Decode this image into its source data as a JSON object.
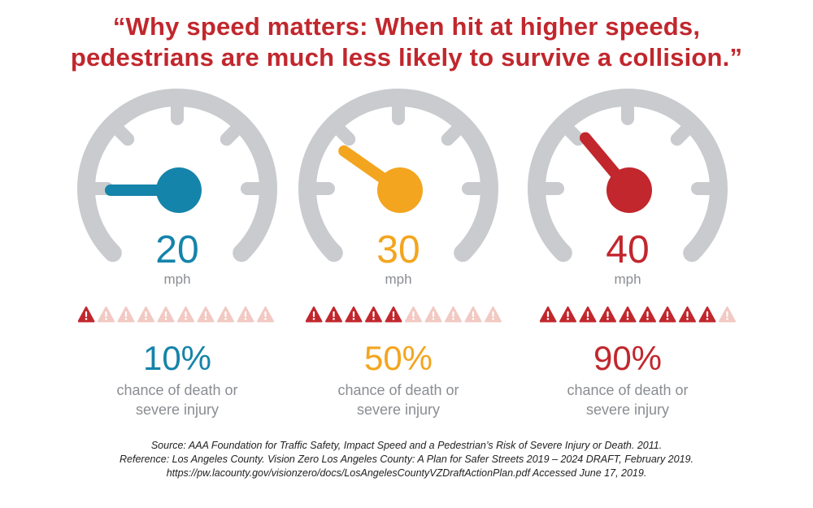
{
  "title": {
    "line1": "“Why speed matters:  When hit at higher speeds,",
    "line2": "pedestrians are much less likely to survive a collision.”",
    "color": "#c1272d"
  },
  "gauge_color": "#c9cbcf",
  "gauges": [
    {
      "speed": "20",
      "unit": "mph",
      "percent": "10%",
      "desc1": "chance of death or",
      "desc2": "severe injury",
      "color": "#1584aa",
      "light_color": "#f2c9c3",
      "warning_color": "#c1272d",
      "warnings_filled": 1,
      "warnings_total": 10,
      "icon": "warning-triangle-icon"
    },
    {
      "speed": "30",
      "unit": "mph",
      "percent": "50%",
      "desc1": "chance of death or",
      "desc2": "severe injury",
      "color": "#f3a51f",
      "light_color": "#f2c9c3",
      "warning_color": "#c1272d",
      "warnings_filled": 5,
      "warnings_total": 10,
      "icon": "warning-triangle-icon"
    },
    {
      "speed": "40",
      "unit": "mph",
      "percent": "90%",
      "desc1": "chance of death or",
      "desc2": "severe injury",
      "color": "#c1272d",
      "light_color": "#f2c9c3",
      "warning_color": "#c1272d",
      "warnings_filled": 9,
      "warnings_total": 10,
      "icon": "warning-triangle-icon"
    }
  ],
  "source": {
    "line1": "Source: AAA Foundation for Traffic Safety, Impact Speed and a Pedestrian’s Risk of Severe Injury or Death. 2011.",
    "line2": "Reference: Los Angeles County. Vision Zero Los Angeles County: A Plan for Safer Streets 2019 – 2024 DRAFT, February 2019.",
    "line3": "https://pw.lacounty.gov/visionzero/docs/LosAngelesCountyVZDraftActionPlan.pdf Accessed June 17, 2019."
  }
}
